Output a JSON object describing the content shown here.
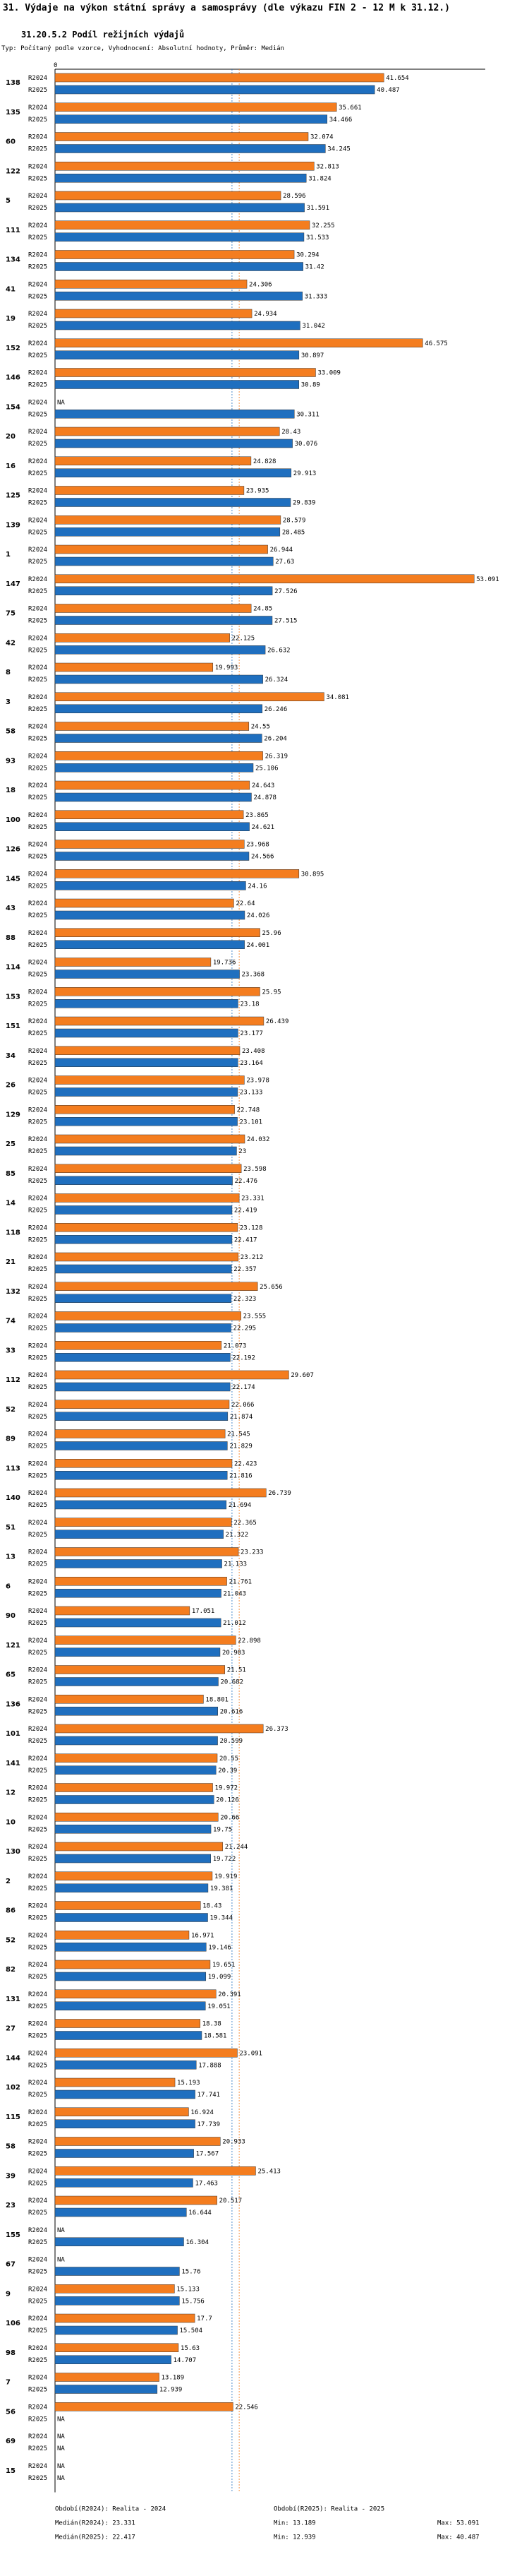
{
  "page": {
    "title": "31. Výdaje na výkon státní správy a samosprávy (dle výkazu FIN 2 - 12 M k 31.12.)",
    "subtitle": "31.20.5.2 Podíl režijních výdajů",
    "note": "Typ: Počítaný podle vzorce, Vyhodnocení: Absolutní hodnoty, Průměr: Medián"
  },
  "chart_data": {
    "type": "bar",
    "orientation": "horizontal",
    "axis_zero_label": "0",
    "xlim": [
      0,
      54.5
    ],
    "series": [
      {
        "name": "R2024",
        "color": "#f47d1f"
      },
      {
        "name": "R2025",
        "color": "#1f6fbf"
      }
    ],
    "missing_label": "NA",
    "categories": [
      {
        "id": "138",
        "R2024": 41.654,
        "R2025": 40.487
      },
      {
        "id": "135",
        "R2024": 35.661,
        "R2025": 34.466
      },
      {
        "id": "60",
        "R2024": 32.074,
        "R2025": 34.245
      },
      {
        "id": "122",
        "R2024": 32.813,
        "R2025": 31.824
      },
      {
        "id": "5",
        "R2024": 28.596,
        "R2025": 31.591
      },
      {
        "id": "111",
        "R2024": 32.255,
        "R2025": 31.533
      },
      {
        "id": "134",
        "R2024": 30.294,
        "R2025": 31.42
      },
      {
        "id": "41",
        "R2024": 24.306,
        "R2025": 31.333
      },
      {
        "id": "19",
        "R2024": 24.934,
        "R2025": 31.042
      },
      {
        "id": "152",
        "R2024": 46.575,
        "R2025": 30.897
      },
      {
        "id": "146",
        "R2024": 33.009,
        "R2025": 30.89
      },
      {
        "id": "154",
        "R2024": null,
        "R2025": 30.311
      },
      {
        "id": "20",
        "R2024": 28.43,
        "R2025": 30.076
      },
      {
        "id": "16",
        "R2024": 24.828,
        "R2025": 29.913
      },
      {
        "id": "125",
        "R2024": 23.935,
        "R2025": 29.839
      },
      {
        "id": "139",
        "R2024": 28.579,
        "R2025": 28.485
      },
      {
        "id": "1",
        "R2024": 26.944,
        "R2025": 27.63
      },
      {
        "id": "147",
        "R2024": 53.091,
        "R2025": 27.526
      },
      {
        "id": "75",
        "R2024": 24.85,
        "R2025": 27.515
      },
      {
        "id": "42",
        "R2024": 22.125,
        "R2025": 26.632
      },
      {
        "id": "8",
        "R2024": 19.993,
        "R2025": 26.324
      },
      {
        "id": "3",
        "R2024": 34.081,
        "R2025": 26.246
      },
      {
        "id": "58",
        "R2024": 24.55,
        "R2025": 26.204
      },
      {
        "id": "93",
        "R2024": 26.319,
        "R2025": 25.106
      },
      {
        "id": "18",
        "R2024": 24.643,
        "R2025": 24.878
      },
      {
        "id": "100",
        "R2024": 23.865,
        "R2025": 24.621
      },
      {
        "id": "126",
        "R2024": 23.968,
        "R2025": 24.566
      },
      {
        "id": "145",
        "R2024": 30.895,
        "R2025": 24.16
      },
      {
        "id": "43",
        "R2024": 22.64,
        "R2025": 24.026
      },
      {
        "id": "88",
        "R2024": 25.96,
        "R2025": 24.001
      },
      {
        "id": "114",
        "R2024": 19.736,
        "R2025": 23.368
      },
      {
        "id": "153",
        "R2024": 25.95,
        "R2025": 23.18
      },
      {
        "id": "151",
        "R2024": 26.439,
        "R2025": 23.177
      },
      {
        "id": "34",
        "R2024": 23.408,
        "R2025": 23.164
      },
      {
        "id": "26",
        "R2024": 23.978,
        "R2025": 23.133
      },
      {
        "id": "129",
        "R2024": 22.748,
        "R2025": 23.101
      },
      {
        "id": "25",
        "R2024": 24.032,
        "R2025": 23.0
      },
      {
        "id": "85",
        "R2024": 23.598,
        "R2025": 22.476
      },
      {
        "id": "14",
        "R2024": 23.331,
        "R2025": 22.419
      },
      {
        "id": "118",
        "R2024": 23.128,
        "R2025": 22.417
      },
      {
        "id": "21",
        "R2024": 23.212,
        "R2025": 22.357
      },
      {
        "id": "132",
        "R2024": 25.656,
        "R2025": 22.323
      },
      {
        "id": "74",
        "R2024": 23.555,
        "R2025": 22.295
      },
      {
        "id": "33",
        "R2024": 21.073,
        "R2025": 22.192
      },
      {
        "id": "112",
        "R2024": 29.607,
        "R2025": 22.174
      },
      {
        "id": "52",
        "R2024": 22.066,
        "R2025": 21.874
      },
      {
        "id": "89",
        "R2024": 21.545,
        "R2025": 21.829
      },
      {
        "id": "113",
        "R2024": 22.423,
        "R2025": 21.816
      },
      {
        "id": "140",
        "R2024": 26.739,
        "R2025": 21.694
      },
      {
        "id": "51",
        "R2024": 22.365,
        "R2025": 21.322
      },
      {
        "id": "13",
        "R2024": 23.233,
        "R2025": 21.133
      },
      {
        "id": "6",
        "R2024": 21.761,
        "R2025": 21.043
      },
      {
        "id": "90",
        "R2024": 17.051,
        "R2025": 21.012
      },
      {
        "id": "121",
        "R2024": 22.898,
        "R2025": 20.903
      },
      {
        "id": "65",
        "R2024": 21.51,
        "R2025": 20.682
      },
      {
        "id": "136",
        "R2024": 18.801,
        "R2025": 20.616
      },
      {
        "id": "101",
        "R2024": 26.373,
        "R2025": 20.599
      },
      {
        "id": "141",
        "R2024": 20.55,
        "R2025": 20.39
      },
      {
        "id": "12",
        "R2024": 19.972,
        "R2025": 20.126
      },
      {
        "id": "10",
        "R2024": 20.66,
        "R2025": 19.75
      },
      {
        "id": "130",
        "R2024": 21.244,
        "R2025": 19.722
      },
      {
        "id": "2",
        "R2024": 19.919,
        "R2025": 19.381
      },
      {
        "id": "86",
        "R2024": 18.43,
        "R2025": 19.344
      },
      {
        "id": "52",
        "R2024": 16.971,
        "R2025": 19.146
      },
      {
        "id": "82",
        "R2024": 19.651,
        "R2025": 19.099
      },
      {
        "id": "131",
        "R2024": 20.391,
        "R2025": 19.051
      },
      {
        "id": "27",
        "R2024": 18.38,
        "R2025": 18.581
      },
      {
        "id": "144",
        "R2024": 23.091,
        "R2025": 17.888
      },
      {
        "id": "102",
        "R2024": 15.193,
        "R2025": 17.741
      },
      {
        "id": "115",
        "R2024": 16.924,
        "R2025": 17.739
      },
      {
        "id": "58",
        "R2024": 20.933,
        "R2025": 17.567
      },
      {
        "id": "39",
        "R2024": 25.413,
        "R2025": 17.463
      },
      {
        "id": "23",
        "R2024": 20.517,
        "R2025": 16.644
      },
      {
        "id": "155",
        "R2024": null,
        "R2025": 16.304
      },
      {
        "id": "67",
        "R2024": null,
        "R2025": 15.76
      },
      {
        "id": "9",
        "R2024": 15.133,
        "R2025": 15.756
      },
      {
        "id": "106",
        "R2024": 17.7,
        "R2025": 15.504
      },
      {
        "id": "98",
        "R2024": 15.63,
        "R2025": 14.707
      },
      {
        "id": "7",
        "R2024": 13.189,
        "R2025": 12.939
      },
      {
        "id": "56",
        "R2024": 22.546,
        "R2025": null
      },
      {
        "id": "69",
        "R2024": null,
        "R2025": null
      },
      {
        "id": "15",
        "R2024": null,
        "R2025": null
      }
    ],
    "medians": {
      "R2024": 23.331,
      "R2025": 22.417
    }
  },
  "footer": {
    "left_col1": "Období(R2024): Realita - 2024",
    "left_col2": "Období(R2025): Realita - 2025",
    "median1": "Medián(R2024): 23.331",
    "median2": "Medián(R2025): 22.417",
    "min1": "Min: 13.189",
    "min2": "Min: 12.939",
    "max1": "Max: 53.091",
    "max2": "Max: 40.487"
  }
}
